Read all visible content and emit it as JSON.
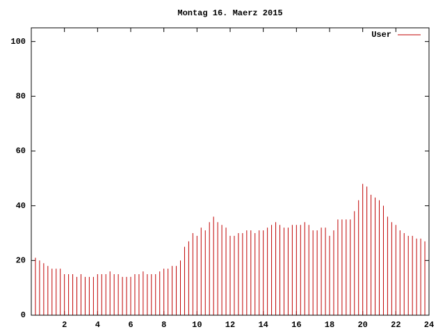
{
  "chart_data": {
    "type": "impulse",
    "title": "Montag 16. Maerz 2015",
    "x": [
      0,
      0.25,
      0.5,
      0.75,
      1,
      1.25,
      1.5,
      1.75,
      2,
      2.25,
      2.5,
      2.75,
      3,
      3.25,
      3.5,
      3.75,
      4,
      4.25,
      4.5,
      4.75,
      5,
      5.25,
      5.5,
      5.75,
      6,
      6.25,
      6.5,
      6.75,
      7,
      7.25,
      7.5,
      7.75,
      8,
      8.25,
      8.5,
      8.75,
      9,
      9.25,
      9.5,
      9.75,
      10,
      10.25,
      10.5,
      10.75,
      11,
      11.25,
      11.5,
      11.75,
      12,
      12.25,
      12.5,
      12.75,
      13,
      13.25,
      13.5,
      13.75,
      14,
      14.25,
      14.5,
      14.75,
      15,
      15.25,
      15.5,
      15.75,
      16,
      16.25,
      16.5,
      16.75,
      17,
      17.25,
      17.5,
      17.75,
      18,
      18.25,
      18.5,
      18.75,
      19,
      19.25,
      19.5,
      19.75,
      20,
      20.25,
      20.5,
      20.75,
      21,
      21.25,
      21.5,
      21.75,
      22,
      22.25,
      22.5,
      22.75,
      23,
      23.25,
      23.5,
      23.75
    ],
    "series": [
      {
        "name": "User",
        "color": "#c00000",
        "values": [
          22,
          21,
          20,
          19,
          18,
          17,
          17,
          17,
          15,
          15,
          15,
          14,
          15,
          14,
          14,
          14,
          15,
          15,
          15,
          16,
          15,
          15,
          14,
          14,
          14,
          15,
          15,
          16,
          15,
          15,
          15,
          16,
          17,
          17,
          18,
          18,
          20,
          25,
          27,
          30,
          29,
          32,
          31,
          34,
          36,
          34,
          33,
          32,
          29,
          29,
          30,
          30,
          31,
          31,
          30,
          31,
          31,
          32,
          33,
          34,
          33,
          32,
          32,
          33,
          33,
          33,
          34,
          33,
          31,
          31,
          32,
          32,
          29,
          31,
          35,
          35,
          35,
          35,
          38,
          42,
          48,
          47,
          44,
          43,
          42,
          40,
          36,
          34,
          33,
          31,
          30,
          29,
          29,
          28,
          28,
          27
        ]
      }
    ],
    "xlim": [
      0,
      24
    ],
    "xticks": [
      2,
      4,
      6,
      8,
      10,
      12,
      14,
      16,
      18,
      20,
      22,
      24
    ],
    "ylim": [
      0,
      105
    ],
    "yticks": [
      0,
      20,
      40,
      60,
      80,
      100
    ],
    "legend": "top-right"
  }
}
